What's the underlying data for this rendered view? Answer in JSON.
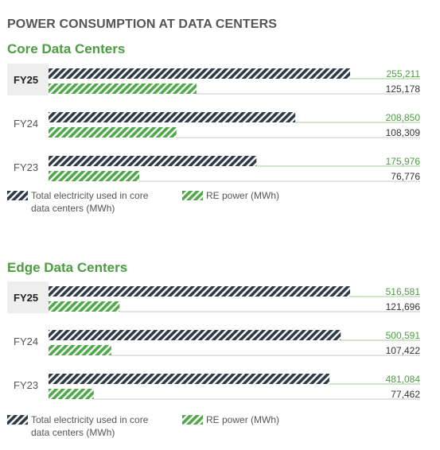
{
  "title": "POWER CONSUMPTION AT DATA CENTERS",
  "colors": {
    "total": "#2e3a48",
    "re": "#4fa84a",
    "line": "#9ccf90",
    "accent_text": "#4a9e3f",
    "highlight_row": "#eeeeee"
  },
  "sections": [
    {
      "title": "Core Data Centers"
    },
    {
      "title": "Edge Data Centers"
    }
  ],
  "legend": {
    "total_label": "Total electricity used in core data centers (MWh)",
    "re_label": "RE power (MWh)"
  },
  "chart_data": [
    {
      "type": "bar",
      "title": "Core Data Centers",
      "categories": [
        "FY25",
        "FY24",
        "FY23"
      ],
      "highlight_category": "FY25",
      "series": [
        {
          "name": "Total electricity used in core data centers (MWh)",
          "values": [
            255211,
            208850,
            175976
          ],
          "labels": [
            "255,211",
            "208,850",
            "175,976"
          ]
        },
        {
          "name": "RE power (MWh)",
          "values": [
            125178,
            108309,
            76776
          ],
          "labels": [
            "125,178",
            "108,309",
            "76,776"
          ]
        }
      ]
    },
    {
      "type": "bar",
      "title": "Edge Data Centers",
      "categories": [
        "FY25",
        "FY24",
        "FY23"
      ],
      "highlight_category": "FY25",
      "series": [
        {
          "name": "Total electricity used in core data centers (MWh)",
          "values": [
            516581,
            500591,
            481084
          ],
          "labels": [
            "516,581",
            "500,591",
            "481,084"
          ]
        },
        {
          "name": "RE power (MWh)",
          "values": [
            121696,
            107422,
            77462
          ],
          "labels": [
            "121,696",
            "107,422",
            "77,462"
          ]
        }
      ]
    }
  ]
}
